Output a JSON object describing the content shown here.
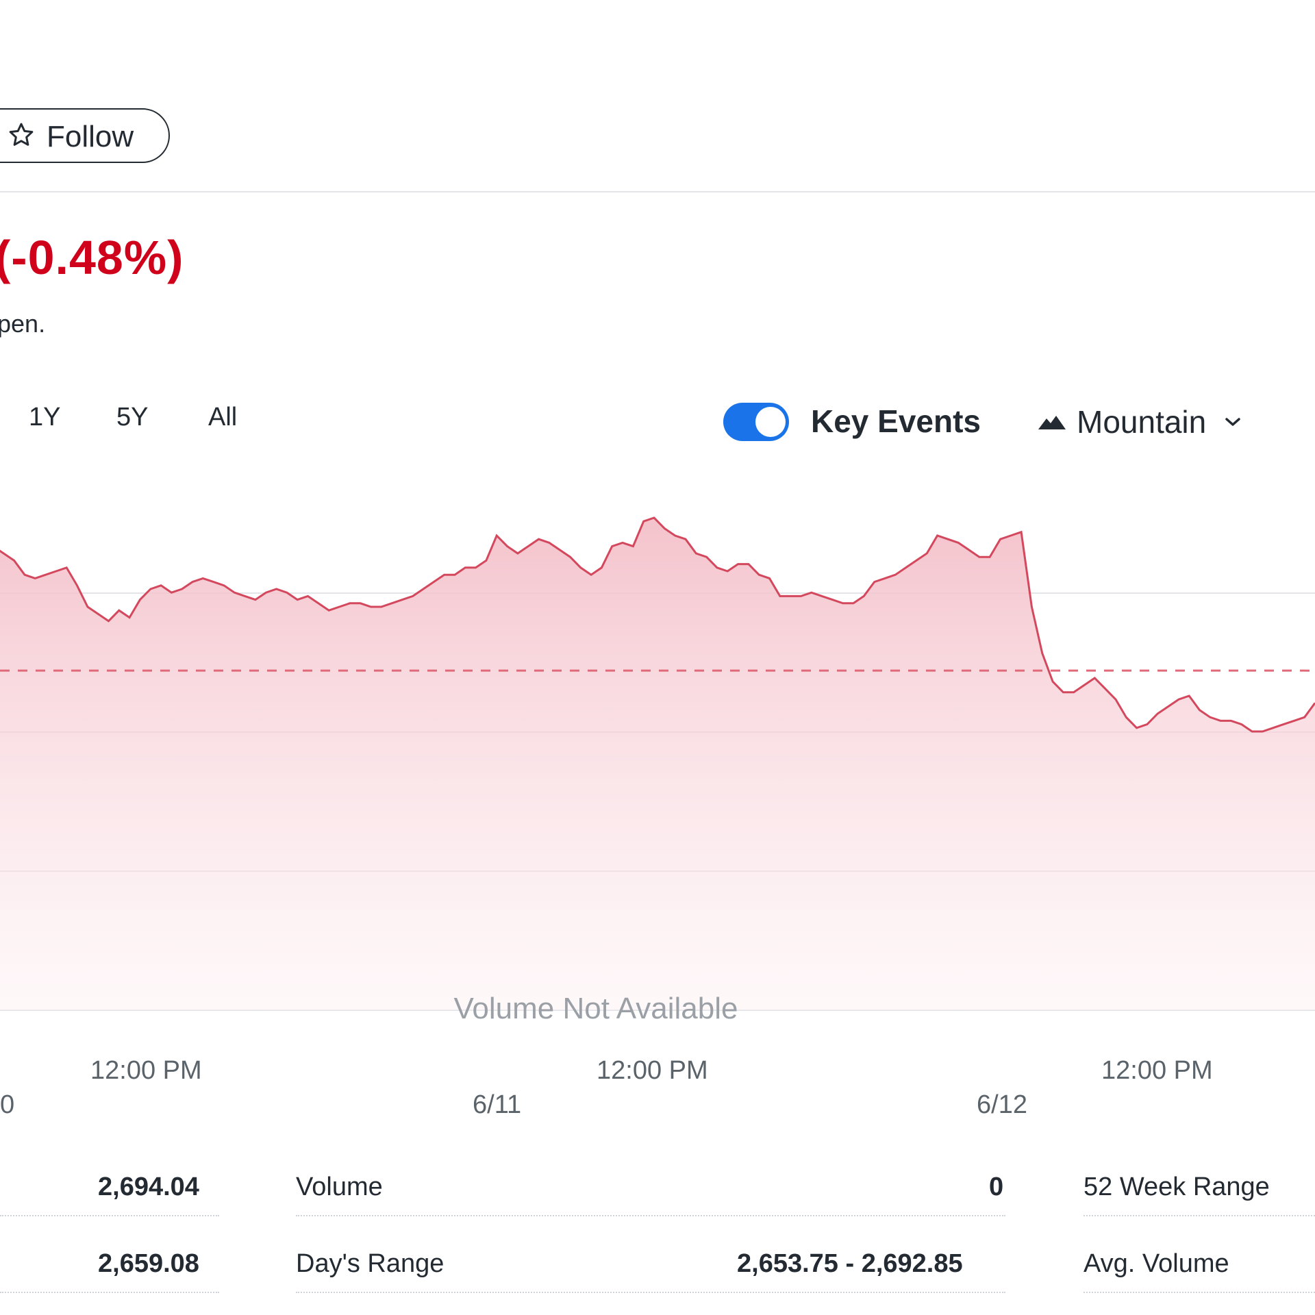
{
  "header": {
    "follow_label": "Follow",
    "price_change": "(-0.48%)",
    "market_note": "pen."
  },
  "range_tabs": [
    "1Y",
    "5Y",
    "All"
  ],
  "controls": {
    "key_events_label": "Key Events",
    "key_events_enabled": true,
    "chart_type_label": "Mountain"
  },
  "colors": {
    "line": "#d4485e",
    "fill": "#f5c7cf",
    "negative": "#d0021b",
    "toggle": "#1a73e8"
  },
  "chart_data": {
    "type": "area",
    "volume_note": "Volume Not Available",
    "x_ticks_time": [
      "12:00 PM",
      "12:00 PM",
      "12:00 PM"
    ],
    "x_ticks_date": [
      "0",
      "6/11",
      "6/12"
    ],
    "series": [
      {
        "values": [
          2694,
          2692,
          2690,
          2686,
          2685,
          2686,
          2687,
          2688,
          2683,
          2677,
          2675,
          2673,
          2676,
          2674,
          2679,
          2682,
          2683,
          2681,
          2682,
          2684,
          2685,
          2684,
          2683,
          2681,
          2680,
          2679,
          2681,
          2682,
          2681,
          2679,
          2680,
          2678,
          2676,
          2677,
          2678,
          2678,
          2677,
          2677,
          2678,
          2679,
          2680,
          2682,
          2684,
          2686,
          2686,
          2688,
          2688,
          2690,
          2697,
          2694,
          2692,
          2694,
          2696,
          2695,
          2693,
          2691,
          2688,
          2686,
          2688,
          2694,
          2695,
          2694,
          2701,
          2702,
          2699,
          2697,
          2696,
          2692,
          2691,
          2688,
          2687,
          2689,
          2689,
          2686,
          2685,
          2680,
          2680,
          2680,
          2681,
          2680,
          2679,
          2678,
          2678,
          2680,
          2684,
          2685,
          2686,
          2688,
          2690,
          2692,
          2697,
          2696,
          2695,
          2693,
          2691,
          2691,
          2696,
          2697,
          2698,
          2677,
          2664,
          2656,
          2653,
          2653,
          2655,
          2657,
          2654,
          2651,
          2646,
          2643,
          2644,
          2647,
          2649,
          2651,
          2652,
          2648,
          2646,
          2645,
          2645,
          2644,
          2642,
          2642,
          2643,
          2644,
          2645,
          2646,
          2650
        ]
      }
    ],
    "reference_line": 2659.08,
    "grid": true
  },
  "stats": {
    "row1": {
      "value_left": "2,694.04",
      "label_mid": "Volume",
      "value_mid": "0",
      "label_right": "52 Week Range"
    },
    "row2": {
      "value_left": "2,659.08",
      "label_mid": "Day's Range",
      "value_mid": "2,653.75 - 2,692.85",
      "label_right": "Avg. Volume"
    }
  }
}
